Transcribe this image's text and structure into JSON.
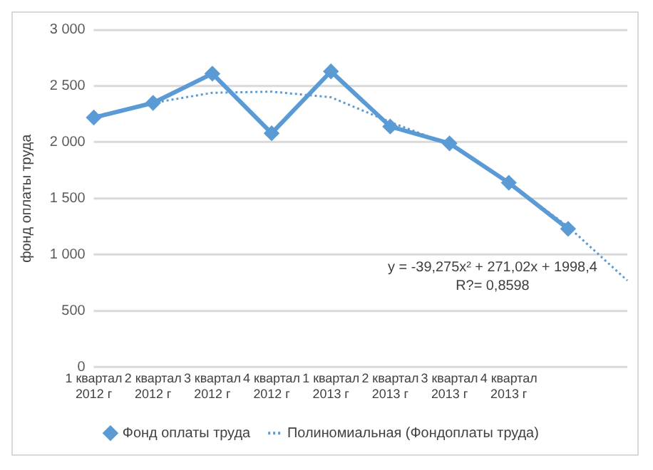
{
  "chart_data": {
    "type": "line",
    "ylabel": "фонд оплаты труда",
    "categories": [
      "1 квартал 2012 г",
      "2 квартал 2012 г",
      "3 квартал 2012 г",
      "4 квартал 2012 г",
      "1 квартал 2013 г",
      "2 квартал 2013 г",
      "3 квартал 2013 г",
      "4 квартал 2013 г",
      null,
      null
    ],
    "series": [
      {
        "name": "Фонд оплаты труда",
        "color": "#5b9bd5",
        "marker": "diamond",
        "line_style": "solid",
        "values": [
          2220,
          2350,
          2610,
          2080,
          2630,
          2140,
          1990,
          1640,
          1230,
          null
        ]
      },
      {
        "name": "Полиномиальная (Фондоплаты труда)",
        "color": "#5b9bd5",
        "marker": "none",
        "line_style": "dotted",
        "values": [
          2230,
          2350,
          2440,
          2450,
          2400,
          2180,
          1980,
          1640,
          1250,
          770
        ]
      }
    ],
    "ylim": [
      0,
      3000
    ],
    "yticks": [
      0,
      500,
      {
        "value": 1000,
        "label": "1 000"
      },
      {
        "value": 1500,
        "label": "1 500"
      },
      {
        "value": 2000,
        "label": "2 000"
      },
      {
        "value": 2500,
        "label": "2 500"
      },
      {
        "value": 3000,
        "label": "3 000"
      }
    ],
    "grid": "y",
    "legend": "bottom",
    "annotations": [
      "y = -39,275x² + 271,02x + 1998,4",
      "R?= 0,8598"
    ]
  }
}
